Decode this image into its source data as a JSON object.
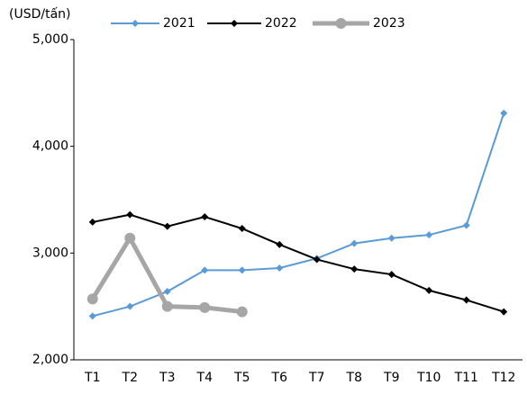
{
  "chart_data": {
    "type": "line",
    "y_label": "(USD/tấn)",
    "categories": [
      "T1",
      "T2",
      "T3",
      "T4",
      "T5",
      "T6",
      "T7",
      "T8",
      "T9",
      "T10",
      "T11",
      "T12"
    ],
    "series": [
      {
        "name": "2021",
        "color": "#5b9bd5",
        "marker": "diamond",
        "values": [
          2410,
          2500,
          2640,
          2840,
          2840,
          2860,
          2950,
          3090,
          3140,
          3170,
          3260,
          4310
        ]
      },
      {
        "name": "2022",
        "color": "#000000",
        "marker": "diamond",
        "values": [
          3290,
          3360,
          3250,
          3340,
          3230,
          3080,
          2940,
          2850,
          2800,
          2650,
          2560,
          2450
        ]
      },
      {
        "name": "2023",
        "color": "#a6a6a6",
        "marker": "circle",
        "values": [
          2570,
          3140,
          2500,
          2490,
          2450,
          null,
          null,
          null,
          null,
          null,
          null,
          null
        ]
      }
    ],
    "ylim": [
      2000,
      5000
    ],
    "yticks": [
      {
        "value": 2000,
        "label": "2,000"
      },
      {
        "value": 3000,
        "label": "3,000"
      },
      {
        "value": 4000,
        "label": "4,000"
      },
      {
        "value": 5000,
        "label": "5,000"
      }
    ],
    "grid": false,
    "legend": "top"
  }
}
